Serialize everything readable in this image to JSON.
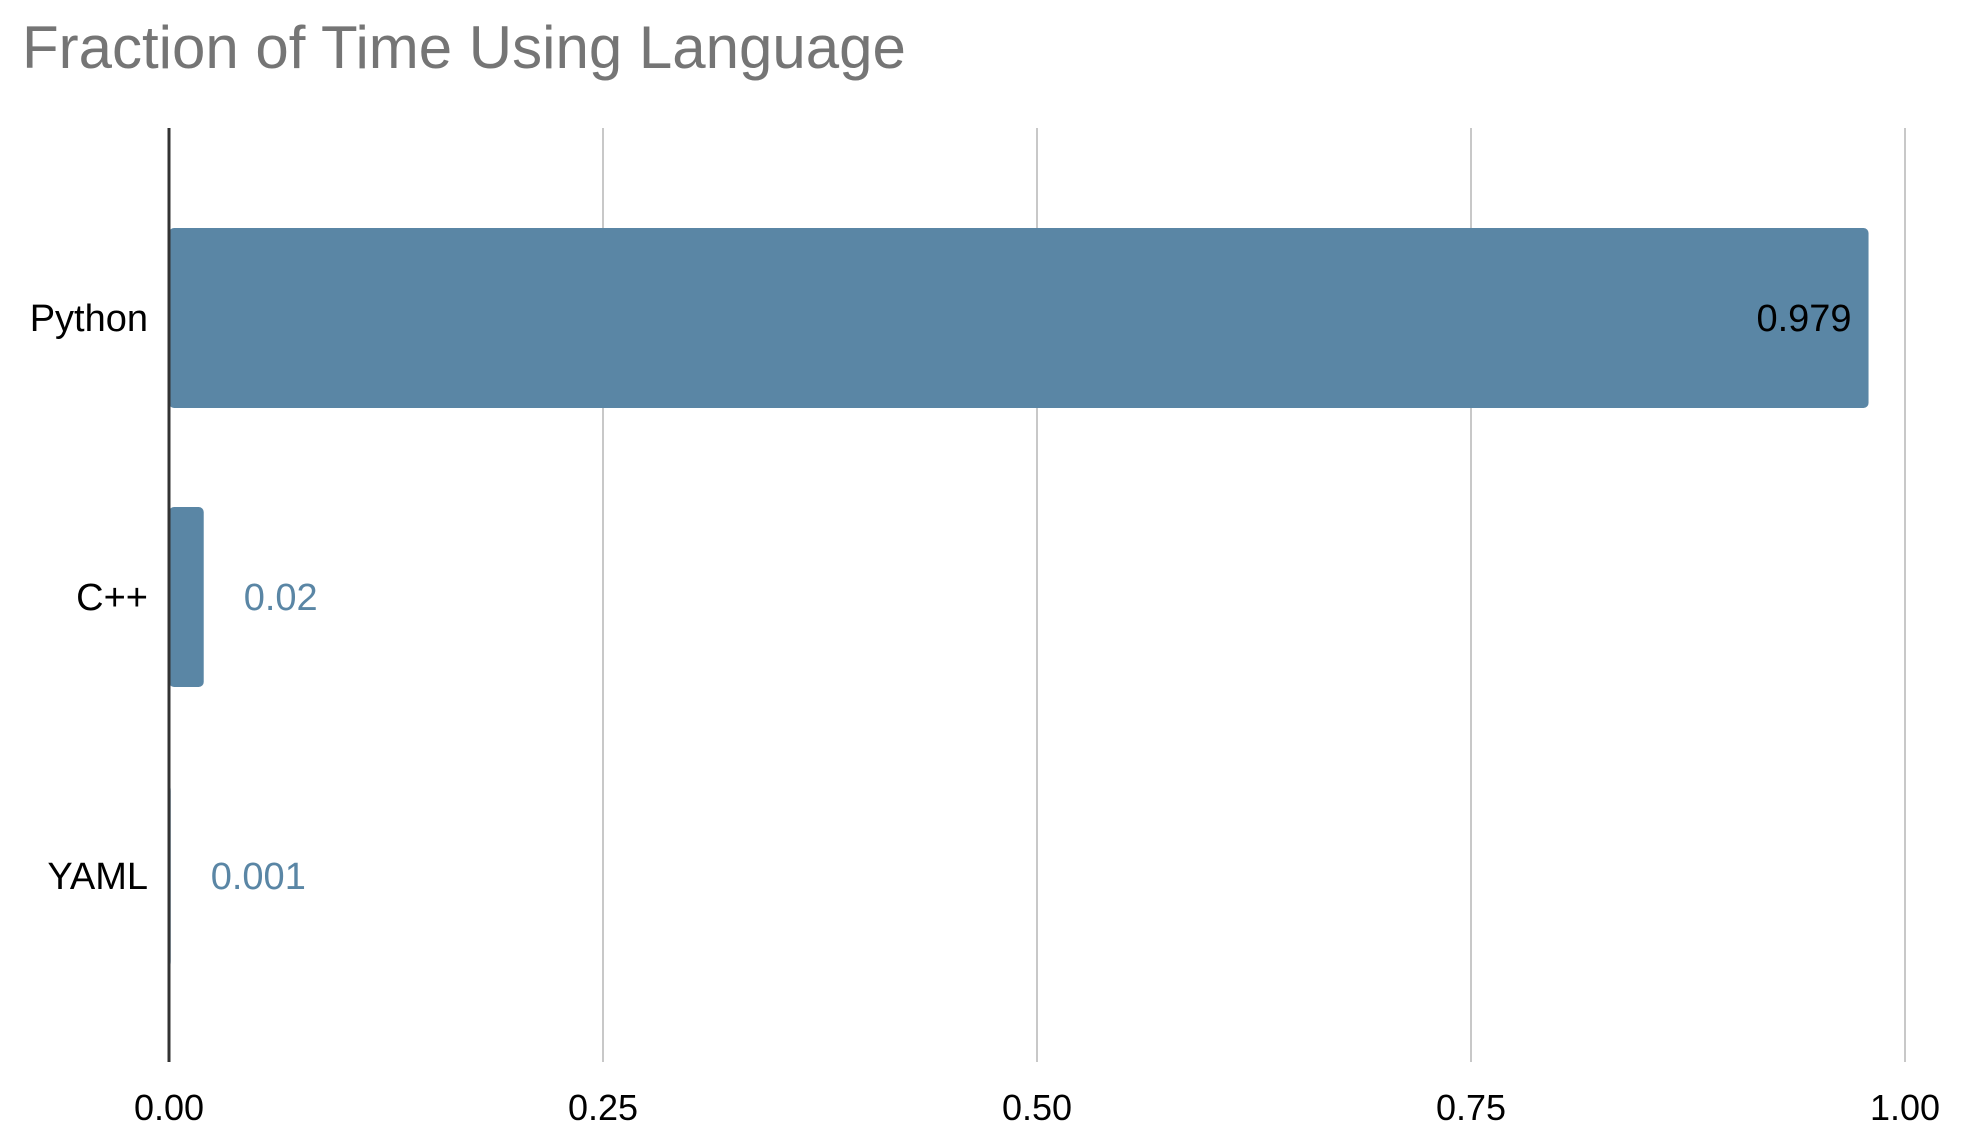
{
  "chart_data": {
    "type": "bar",
    "orientation": "horizontal",
    "title": "Fraction of Time Using Language",
    "categories": [
      "Python",
      "C++",
      "YAML"
    ],
    "values": [
      0.979,
      0.02,
      0.001
    ],
    "data_labels": [
      "0.979",
      "0.02",
      "0.001"
    ],
    "xlabel": "",
    "ylabel": "",
    "xlim": [
      0,
      1
    ],
    "x_ticks": [
      0,
      0.25,
      0.5,
      0.75,
      1
    ],
    "x_tick_labels": [
      "0.00",
      "0.25",
      "0.50",
      "0.75",
      "1.00"
    ],
    "grid": true,
    "legend": "none"
  },
  "colors": {
    "bar": "#5a86a5",
    "grid": "#c8c8c8",
    "axis": "#333333",
    "title": "#757575",
    "label_inside": "#000000",
    "label_outside": "#5a86a5"
  }
}
